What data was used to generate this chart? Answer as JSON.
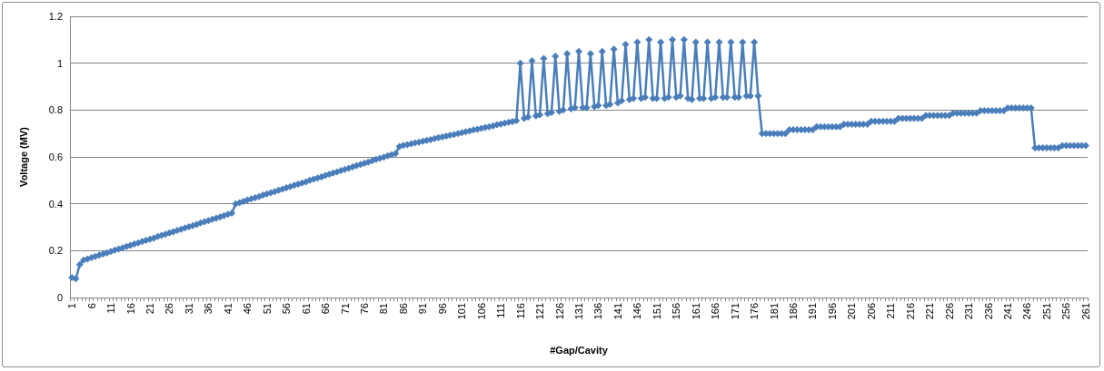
{
  "chart_data": {
    "type": "line",
    "xlabel": "#Gap/Cavity",
    "ylabel": "Voltage (MV)",
    "categories": [
      "1",
      null,
      null,
      null,
      null,
      "6",
      null,
      null,
      null,
      null,
      "11",
      null,
      null,
      null,
      null,
      "16",
      null,
      null,
      null,
      null,
      "21",
      null,
      null,
      null,
      null,
      "26",
      null,
      null,
      null,
      null,
      "31",
      null,
      null,
      null,
      null,
      "36",
      null,
      null,
      null,
      null,
      "41",
      null,
      null,
      null,
      null,
      "46",
      null,
      null,
      null,
      null,
      "51",
      null,
      null,
      null,
      null,
      "56",
      null,
      null,
      null,
      null,
      "61",
      null,
      null,
      null,
      null,
      "66",
      null,
      null,
      null,
      null,
      "71",
      null,
      null,
      null,
      null,
      "76",
      null,
      null,
      null,
      null,
      "81",
      null,
      null,
      null,
      null,
      "86",
      null,
      null,
      null,
      null,
      "91",
      null,
      null,
      null,
      null,
      "96",
      null,
      null,
      null,
      null,
      "101",
      null,
      null,
      null,
      null,
      "106",
      null,
      null,
      null,
      null,
      "111",
      null,
      null,
      null,
      null,
      "116",
      null,
      null,
      null,
      null,
      "121",
      null,
      null,
      null,
      null,
      "126",
      null,
      null,
      null,
      null,
      "131",
      null,
      null,
      null,
      null,
      "136",
      null,
      null,
      null,
      null,
      "141",
      null,
      null,
      null,
      null,
      "146",
      null,
      null,
      null,
      null,
      "151",
      null,
      null,
      null,
      null,
      "156",
      null,
      null,
      null,
      null,
      "161",
      null,
      null,
      null,
      null,
      "166",
      null,
      null,
      null,
      null,
      "171",
      null,
      null,
      null,
      null,
      "176",
      null,
      null,
      null,
      null,
      "181",
      null,
      null,
      null,
      null,
      "186",
      null,
      null,
      null,
      null,
      "191",
      null,
      null,
      null,
      null,
      "196",
      null,
      null,
      null,
      null,
      "201",
      null,
      null,
      null,
      null,
      "206",
      null,
      null,
      null,
      null,
      "211",
      null,
      null,
      null,
      null,
      "216",
      null,
      null,
      null,
      null,
      "221",
      null,
      null,
      null,
      null,
      "226",
      null,
      null,
      null,
      null,
      "231",
      null,
      null,
      null,
      null,
      "236",
      null,
      null,
      null,
      null,
      "241",
      null,
      null,
      null,
      null,
      "246",
      null,
      null,
      null,
      null,
      "251",
      null,
      null,
      null,
      null,
      "256",
      null,
      null,
      null,
      null,
      "261"
    ],
    "series": [
      {
        "color": "#4a7ebb",
        "values": [
          0.085,
          0.08,
          0.14,
          0.16,
          0.165,
          0.17,
          0.175,
          0.181,
          0.186,
          0.191,
          0.196,
          0.202,
          0.207,
          0.212,
          0.218,
          0.223,
          0.228,
          0.233,
          0.239,
          0.244,
          0.249,
          0.254,
          0.26,
          0.265,
          0.27,
          0.276,
          0.281,
          0.286,
          0.291,
          0.297,
          0.302,
          0.307,
          0.312,
          0.318,
          0.323,
          0.328,
          0.334,
          0.339,
          0.344,
          0.349,
          0.355,
          0.36,
          0.4,
          0.405,
          0.41,
          0.416,
          0.421,
          0.426,
          0.431,
          0.437,
          0.442,
          0.447,
          0.452,
          0.458,
          0.463,
          0.468,
          0.473,
          0.479,
          0.484,
          0.489,
          0.494,
          0.5,
          0.505,
          0.51,
          0.515,
          0.521,
          0.526,
          0.531,
          0.536,
          0.542,
          0.547,
          0.552,
          0.557,
          0.563,
          0.568,
          0.573,
          0.578,
          0.584,
          0.589,
          0.594,
          0.599,
          0.605,
          0.61,
          0.615,
          0.645,
          0.649,
          0.652,
          0.656,
          0.66,
          0.663,
          0.667,
          0.671,
          0.674,
          0.678,
          0.682,
          0.685,
          0.689,
          0.693,
          0.696,
          0.7,
          0.704,
          0.707,
          0.711,
          0.715,
          0.718,
          0.722,
          0.726,
          0.729,
          0.733,
          0.737,
          0.74,
          0.744,
          0.748,
          0.751,
          0.755,
          1.0,
          0.765,
          0.77,
          1.01,
          0.775,
          0.78,
          1.02,
          0.785,
          0.79,
          1.03,
          0.795,
          0.8,
          1.04,
          0.805,
          0.81,
          1.05,
          0.81,
          0.81,
          1.04,
          0.815,
          0.82,
          1.05,
          0.82,
          0.825,
          1.06,
          0.83,
          0.84,
          1.08,
          0.845,
          0.85,
          1.09,
          0.85,
          0.855,
          1.1,
          0.85,
          0.85,
          1.09,
          0.85,
          0.855,
          1.1,
          0.855,
          0.86,
          1.1,
          0.85,
          0.845,
          1.09,
          0.85,
          0.85,
          1.09,
          0.85,
          0.855,
          1.09,
          0.855,
          0.855,
          1.09,
          0.855,
          0.855,
          1.09,
          0.86,
          0.86,
          1.09,
          0.86,
          0.7,
          0.7,
          0.7,
          0.7,
          0.7,
          0.7,
          0.7,
          0.716,
          0.716,
          0.716,
          0.716,
          0.716,
          0.716,
          0.716,
          0.729,
          0.729,
          0.729,
          0.729,
          0.729,
          0.729,
          0.729,
          0.739,
          0.739,
          0.739,
          0.739,
          0.739,
          0.739,
          0.739,
          0.752,
          0.752,
          0.752,
          0.752,
          0.752,
          0.752,
          0.752,
          0.765,
          0.765,
          0.765,
          0.765,
          0.765,
          0.765,
          0.765,
          0.777,
          0.777,
          0.777,
          0.777,
          0.777,
          0.777,
          0.777,
          0.787,
          0.787,
          0.787,
          0.787,
          0.787,
          0.787,
          0.787,
          0.797,
          0.797,
          0.797,
          0.797,
          0.797,
          0.797,
          0.797,
          0.809,
          0.809,
          0.809,
          0.809,
          0.809,
          0.809,
          0.809,
          0.639,
          0.639,
          0.639,
          0.639,
          0.639,
          0.639,
          0.639,
          0.648,
          0.648,
          0.648,
          0.648,
          0.648,
          0.648,
          0.648
        ]
      }
    ],
    "ylim": [
      0,
      1.2
    ],
    "yticks": [
      0,
      0.2,
      0.4,
      0.6,
      0.8,
      1,
      1.2
    ],
    "grid": "y",
    "marker": "diamond",
    "line_style": "solid"
  }
}
